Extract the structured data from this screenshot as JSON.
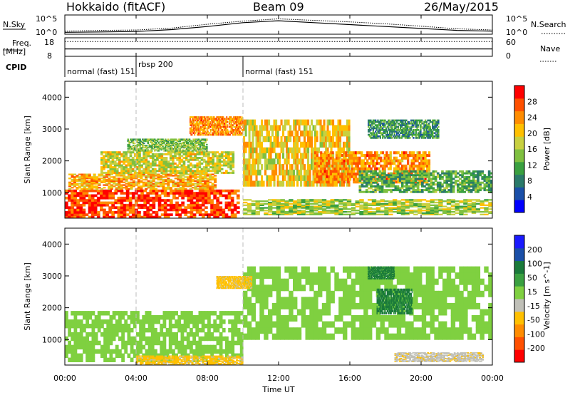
{
  "header": {
    "station": "Hokkaido (fitACF)",
    "beam": "Beam 09",
    "date": "26/May/2015"
  },
  "noise_panel": {
    "left_label": "N.Sky",
    "left_ticks": [
      "10^5",
      "10^0"
    ],
    "right_ticks": [
      "10^5",
      "10^0"
    ],
    "right_label": "N.Search"
  },
  "freq_panel": {
    "left_label_1": "Freq.",
    "left_label_2": "[MHz]",
    "left_ticks": [
      "18",
      "8"
    ],
    "right_ticks": [
      "60",
      "0"
    ],
    "right_label": "Nave"
  },
  "cpid": {
    "label": "CPID",
    "segments": [
      {
        "start_hour": 0.0,
        "text": "normal (fast) 151"
      },
      {
        "start_hour": 4.0,
        "text": "rbsp 200"
      },
      {
        "start_hour": 10.0,
        "text": "normal (fast) 151"
      }
    ]
  },
  "x_axis": {
    "label": "Time UT",
    "range_hours": [
      0,
      24
    ],
    "ticks": [
      "00:00",
      "04:00",
      "08:00",
      "12:00",
      "16:00",
      "20:00",
      "00:00"
    ],
    "tick_hours": [
      0,
      4,
      8,
      12,
      16,
      20,
      24
    ]
  },
  "range_axis": {
    "label": "Slant Range [km]",
    "range_km": [
      200,
      4500
    ],
    "ticks": [
      "1000",
      "2000",
      "3000",
      "4000"
    ],
    "tick_values": [
      1000,
      2000,
      3000,
      4000
    ]
  },
  "power_colorbar": {
    "label": "Power [dB]",
    "unit_min": 0,
    "unit_max": 32,
    "ticks": [
      "28",
      "24",
      "20",
      "16",
      "12",
      "8",
      "4"
    ],
    "tick_values": [
      28,
      24,
      20,
      16,
      12,
      8,
      4
    ],
    "colors": [
      "#0000ff",
      "#1a4fa8",
      "#2a7a6a",
      "#3aa040",
      "#7fc040",
      "#c8d040",
      "#ffc000",
      "#ff8c00",
      "#ff5000",
      "#ff0000"
    ]
  },
  "velocity_colorbar": {
    "label": "Velocity [m s^-1]",
    "ticks": [
      "200",
      "100",
      "50",
      "15",
      "-15",
      "-50",
      "-100",
      "-200"
    ],
    "tick_values": [
      200,
      100,
      50,
      15,
      -15,
      -50,
      -100,
      -200
    ],
    "colors": [
      "#ff0000",
      "#ff5000",
      "#ff8c00",
      "#ffc000",
      "#c0c0b8",
      "#7fd040",
      "#3aa040",
      "#1a7a3a",
      "#1a4fa8",
      "#1a1aff"
    ]
  },
  "chart_data": {
    "type": "heatmap",
    "panels": [
      {
        "name": "Power",
        "regions": [
          {
            "t": [
              0.0,
              9.8
            ],
            "r": [
              200,
              1100
            ],
            "value": 28
          },
          {
            "t": [
              0.2,
              8.5
            ],
            "r": [
              1100,
              1600
            ],
            "value": 22
          },
          {
            "t": [
              2.0,
              9.5
            ],
            "r": [
              1600,
              2300
            ],
            "value": 18
          },
          {
            "t": [
              3.5,
              8.0
            ],
            "r": [
              2300,
              2700
            ],
            "value": 14
          },
          {
            "t": [
              7.0,
              10.0
            ],
            "r": [
              2800,
              3400
            ],
            "value": 24
          },
          {
            "t": [
              10.0,
              16.0
            ],
            "r": [
              1200,
              3300
            ],
            "value": 20
          },
          {
            "t": [
              14.0,
              20.5
            ],
            "r": [
              1300,
              2300
            ],
            "value": 24
          },
          {
            "t": [
              16.5,
              24.0
            ],
            "r": [
              1000,
              1700
            ],
            "value": 12
          },
          {
            "t": [
              10.0,
              24.0
            ],
            "r": [
              300,
              800
            ],
            "value": 16
          },
          {
            "t": [
              17.0,
              21.0
            ],
            "r": [
              2700,
              3300
            ],
            "value": 10
          }
        ]
      },
      {
        "name": "Velocity",
        "regions": [
          {
            "t": [
              0.0,
              10.0
            ],
            "r": [
              300,
              1900
            ],
            "value": 0
          },
          {
            "t": [
              10.0,
              24.0
            ],
            "r": [
              1000,
              3300
            ],
            "value": 0
          },
          {
            "t": [
              17.5,
              19.5
            ],
            "r": [
              1800,
              2600
            ],
            "value": 60
          },
          {
            "t": [
              17.0,
              18.5
            ],
            "r": [
              2900,
              3300
            ],
            "value": 60
          },
          {
            "t": [
              4.0,
              10.0
            ],
            "r": [
              150,
              500
            ],
            "value": -60
          },
          {
            "t": [
              18.5,
              23.5
            ],
            "r": [
              300,
              600
            ],
            "value": -40
          },
          {
            "t": [
              8.5,
              10.5
            ],
            "r": [
              2600,
              3000
            ],
            "value": -60
          }
        ]
      }
    ],
    "noise_sky": {
      "x": [
        0,
        2,
        4,
        6,
        8,
        10,
        12,
        14,
        16,
        18,
        20,
        22,
        24
      ],
      "y": [
        0.5,
        0.6,
        0.7,
        1.2,
        2.0,
        3.0,
        3.5,
        3.0,
        2.5,
        2.0,
        1.5,
        1.0,
        0.8
      ]
    },
    "noise_search": {
      "x": [
        0,
        2,
        4,
        6,
        8,
        10,
        12,
        14,
        16,
        18,
        20,
        22,
        24
      ],
      "y": [
        0.8,
        1.0,
        1.1,
        1.6,
        2.6,
        3.4,
        4.0,
        3.6,
        3.2,
        2.7,
        2.1,
        1.4,
        1.1
      ]
    },
    "frequency_mhz": 12,
    "nave": 48
  }
}
